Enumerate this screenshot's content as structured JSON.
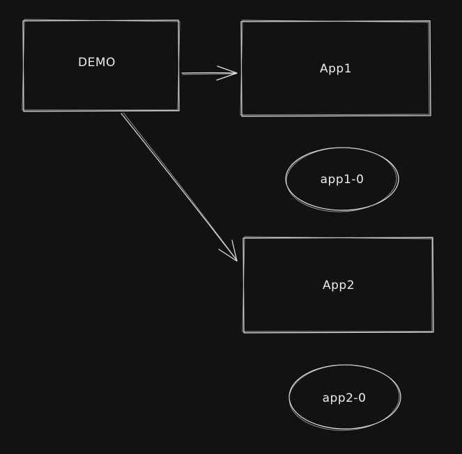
{
  "diagram": {
    "background": "#121212",
    "stroke_color": "#e6e6e6",
    "nodes": {
      "demo": {
        "label": "DEMO",
        "shape": "rectangle"
      },
      "app1": {
        "label": "App1",
        "shape": "rectangle"
      },
      "app1_0": {
        "label": "app1-0",
        "shape": "ellipse"
      },
      "app2": {
        "label": "App2",
        "shape": "rectangle"
      },
      "app2_0": {
        "label": "app2-0",
        "shape": "ellipse"
      }
    },
    "edges": [
      {
        "from": "DEMO",
        "to": "App1"
      },
      {
        "from": "DEMO",
        "to": "App2"
      }
    ]
  }
}
